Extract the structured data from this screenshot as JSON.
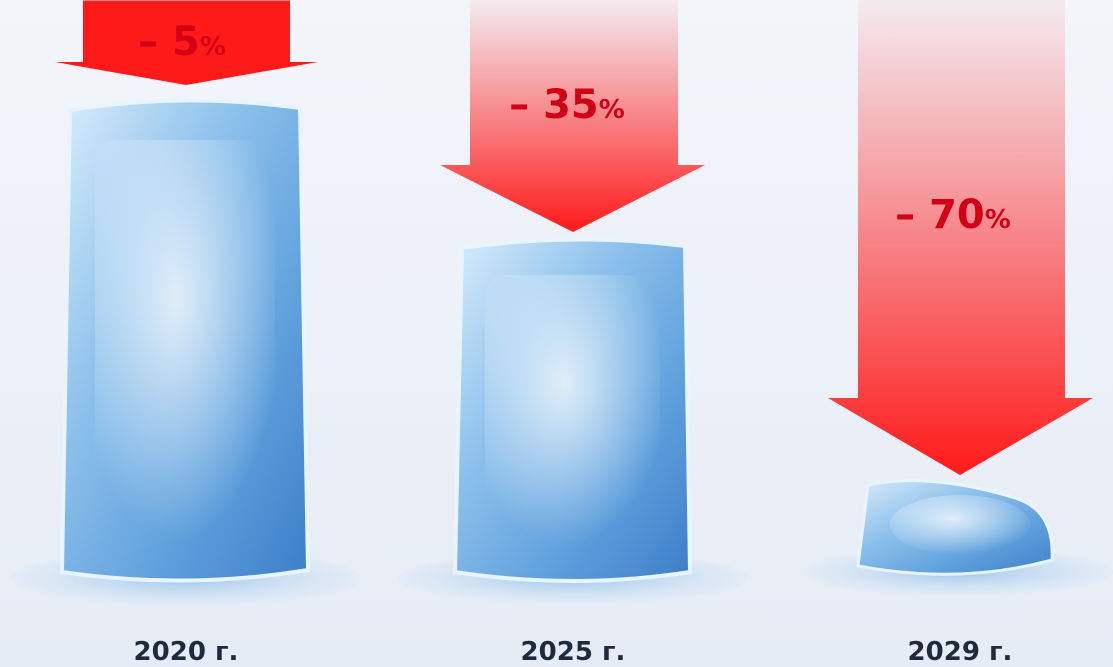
{
  "items": [
    {
      "value": "– 5",
      "unit": "%",
      "year": "2020 г."
    },
    {
      "value": "– 35",
      "unit": "%",
      "year": "2025 г."
    },
    {
      "value": "– 70",
      "unit": "%",
      "year": "2029 г."
    }
  ]
}
